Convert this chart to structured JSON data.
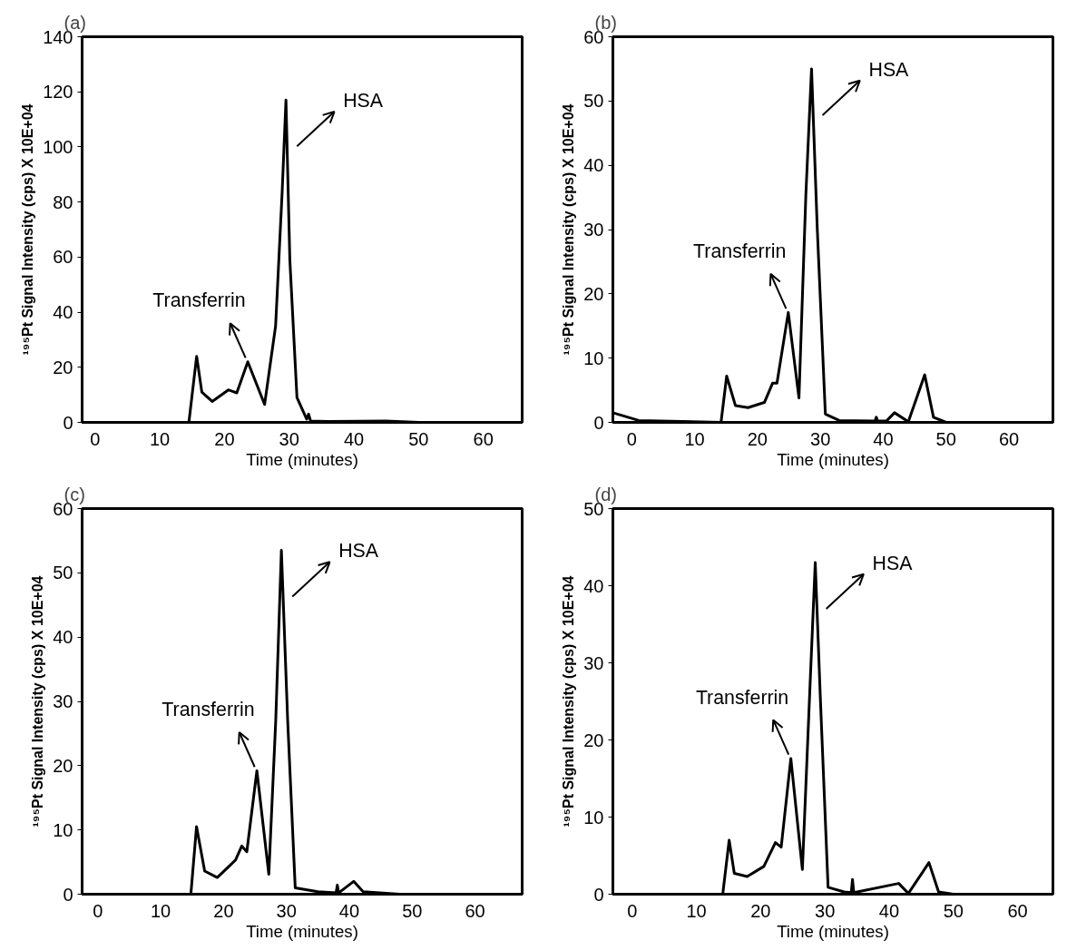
{
  "chart_data": [
    {
      "type": "line",
      "title": "(a)",
      "xlabel": "Time (minutes)",
      "ylabel": "¹⁹⁵Pt Signal Intensity (cps) X 10E+04",
      "xlim": [
        -2,
        66
      ],
      "ylim": [
        0,
        140
      ],
      "xticks": [
        0,
        10,
        20,
        30,
        40,
        50,
        60
      ],
      "yticks": [
        0,
        20,
        40,
        60,
        80,
        100,
        120,
        140
      ],
      "x": [
        -2,
        14.5,
        15.7,
        16.5,
        18.1,
        20.6,
        21.9,
        23.6,
        26.2,
        27.9,
        28.9,
        29.5,
        30.1,
        31.2,
        32.7,
        33,
        33.3,
        36,
        45,
        50,
        66
      ],
      "series": [
        {
          "color": "#000000",
          "values": [
            0,
            0,
            24,
            11,
            7.6,
            11.8,
            10.7,
            22,
            6.5,
            35,
            83,
            117,
            59,
            9,
            1.2,
            3,
            0.5,
            0.3,
            0.5,
            0,
            0
          ]
        }
      ],
      "annotations": [
        {
          "text": "HSA",
          "x": 29.5,
          "y": 117
        },
        {
          "text": "Transferrin",
          "x": 23.6,
          "y": 22
        }
      ]
    },
    {
      "type": "line",
      "title": "(b)",
      "xlabel": "Time (minutes)",
      "ylabel": "¹⁹⁵Pt Signal Intensity (cps) X 10E+04",
      "xlim": [
        -3,
        67
      ],
      "ylim": [
        0,
        60
      ],
      "xticks": [
        0,
        10,
        20,
        30,
        40,
        50,
        60
      ],
      "yticks": [
        0,
        10,
        20,
        30,
        40,
        50,
        60
      ],
      "x": [
        -3,
        1.1,
        14.2,
        15.1,
        16.5,
        18.5,
        21.1,
        22.4,
        23.1,
        24.9,
        26.6,
        27.7,
        28.6,
        29.5,
        30.8,
        33,
        38.7,
        38.9,
        39.1,
        40.5,
        41.8,
        44,
        46.6,
        48,
        50,
        67
      ],
      "series": [
        {
          "color": "#000000",
          "values": [
            1.5,
            0.3,
            0,
            7.2,
            2.6,
            2.3,
            3.1,
            6.1,
            6.1,
            17.1,
            3.8,
            35.5,
            55,
            30.4,
            1.3,
            0.3,
            0.2,
            0.8,
            0.2,
            0.2,
            1.5,
            0.1,
            7.4,
            0.8,
            0,
            0
          ]
        }
      ],
      "annotations": [
        {
          "text": "HSA",
          "x": 28.6,
          "y": 55
        },
        {
          "text": "Transferrin",
          "x": 24.9,
          "y": 17.1
        }
      ]
    },
    {
      "type": "line",
      "title": "(c)",
      "xlabel": "Time (minutes)",
      "ylabel": "¹⁹⁵Pt Signal Intensity (cps) X 10E+04",
      "xlim": [
        -2.5,
        67.5
      ],
      "ylim": [
        0,
        60
      ],
      "xticks": [
        0,
        10,
        20,
        30,
        40,
        50,
        60
      ],
      "yticks": [
        0,
        10,
        20,
        30,
        40,
        50,
        60
      ],
      "x": [
        -2.5,
        14.8,
        15.7,
        17,
        19,
        21.9,
        22.9,
        23.7,
        25.3,
        27.2,
        28.3,
        29.2,
        30.2,
        31.4,
        35,
        37.9,
        38.1,
        38.3,
        40.7,
        42.2,
        48,
        67.5
      ],
      "series": [
        {
          "color": "#000000",
          "values": [
            0,
            0,
            10.5,
            3.6,
            2.6,
            5.3,
            7.5,
            6.6,
            19.2,
            3.1,
            27,
            53.5,
            27,
            1,
            0.4,
            0.2,
            1.4,
            0.2,
            2,
            0.4,
            0,
            0
          ]
        }
      ],
      "annotations": [
        {
          "text": "HSA",
          "x": 29.2,
          "y": 53.5
        },
        {
          "text": "Transferrin",
          "x": 25.3,
          "y": 19.2
        }
      ]
    },
    {
      "type": "line",
      "title": "(d)",
      "xlabel": "Time (minutes)",
      "ylabel": "¹⁹⁵Pt Signal Intensity (cps) X 10E+04",
      "xlim": [
        -3,
        65.5
      ],
      "ylim": [
        0,
        50
      ],
      "xticks": [
        0,
        10,
        20,
        30,
        40,
        50,
        60
      ],
      "yticks": [
        0,
        10,
        20,
        30,
        40,
        50
      ],
      "x": [
        -3,
        14.1,
        15.1,
        15.9,
        17.9,
        20.5,
        22.3,
        23.2,
        24.7,
        26.5,
        27.6,
        28.5,
        29.3,
        30.5,
        33,
        34.1,
        34.3,
        34.5,
        41.5,
        43,
        46.2,
        47.7,
        50,
        65.5
      ],
      "series": [
        {
          "color": "#000000",
          "values": [
            0,
            0,
            7,
            2.7,
            2.3,
            3.6,
            6.7,
            6.1,
            17.6,
            3.2,
            25.3,
            43,
            25.3,
            0.9,
            0.3,
            0.2,
            1.9,
            0.2,
            1.4,
            0.1,
            4.1,
            0.3,
            0,
            0
          ]
        }
      ],
      "annotations": [
        {
          "text": "HSA",
          "x": 28.5,
          "y": 43
        },
        {
          "text": "Transferrin",
          "x": 24.7,
          "y": 17.6
        }
      ]
    }
  ]
}
